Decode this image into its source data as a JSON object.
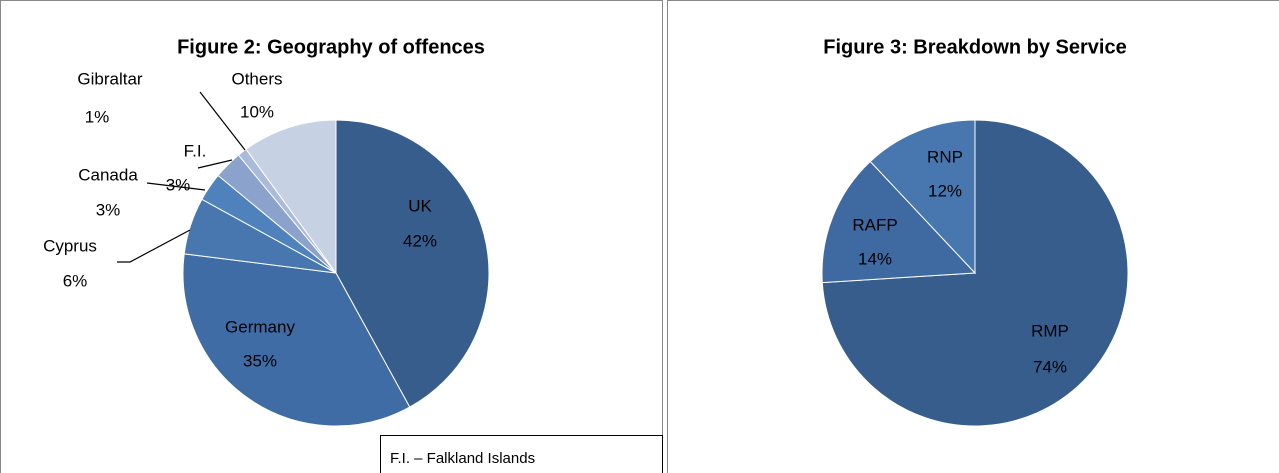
{
  "chart_data": [
    {
      "type": "pie",
      "title": "Figure 2: Geography of offences",
      "categories": [
        "UK",
        "Germany",
        "Cyprus",
        "Canada",
        "F.I.",
        "Gibraltar",
        "Others"
      ],
      "values": [
        42,
        35,
        6,
        3,
        3,
        1,
        10
      ],
      "value_labels": [
        "42%",
        "35%",
        "6%",
        "3%",
        "3%",
        "1%",
        "10%"
      ],
      "colors": [
        "#375d8c",
        "#3f6ca5",
        "#4877b0",
        "#4f81bd",
        "#8aa2cc",
        "#a9badb",
        "#c7d1e4"
      ],
      "annotation": "F.I. – Falkland Islands"
    },
    {
      "type": "pie",
      "title": "Figure 3: Breakdown by Service",
      "categories": [
        "RMP",
        "RAFP",
        "RNP"
      ],
      "values": [
        74,
        14,
        12
      ],
      "value_labels": [
        "74%",
        "14%",
        "12%"
      ],
      "colors": [
        "#375d8c",
        "#3e6aa1",
        "#4877b0"
      ]
    }
  ]
}
